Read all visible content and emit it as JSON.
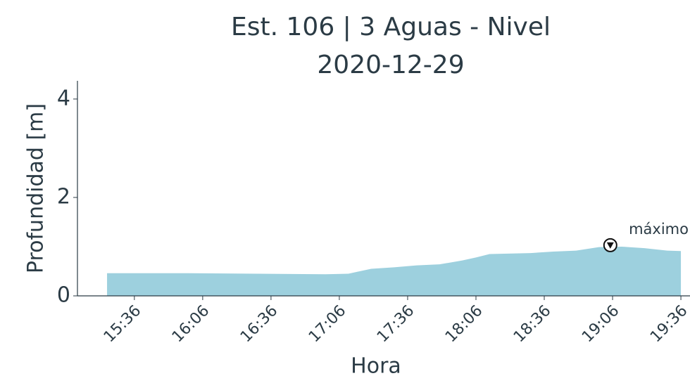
{
  "chart_data": {
    "type": "area",
    "title": "Est. 106 | 3 Aguas - Nivel",
    "subtitle": "2020-12-29",
    "xlabel": "Hora",
    "ylabel": "Profundidad [m]",
    "x": [
      "15:24",
      "15:36",
      "16:00",
      "16:30",
      "17:00",
      "17:10",
      "17:20",
      "17:30",
      "17:40",
      "17:50",
      "18:00",
      "18:06",
      "18:12",
      "18:30",
      "18:40",
      "18:50",
      "19:00",
      "19:10",
      "19:20",
      "19:30",
      "19:36"
    ],
    "series": [
      {
        "name": "Nivel",
        "color": "#9dd0de",
        "values": [
          0.46,
          0.46,
          0.46,
          0.45,
          0.44,
          0.45,
          0.55,
          0.58,
          0.62,
          0.64,
          0.72,
          0.78,
          0.85,
          0.87,
          0.9,
          0.92,
          0.99,
          1.0,
          0.97,
          0.92,
          0.91
        ]
      }
    ],
    "xlim": [
      "15:11",
      "19:40"
    ],
    "xticks": [
      "15:36",
      "16:06",
      "16:36",
      "17:06",
      "17:36",
      "18:06",
      "18:36",
      "19:06",
      "19:36"
    ],
    "ylim": [
      0,
      4.37
    ],
    "yticks": [
      0,
      2,
      4
    ],
    "annotations": [
      {
        "text": "máximo",
        "x": "19:05",
        "y": 1.03
      }
    ]
  }
}
